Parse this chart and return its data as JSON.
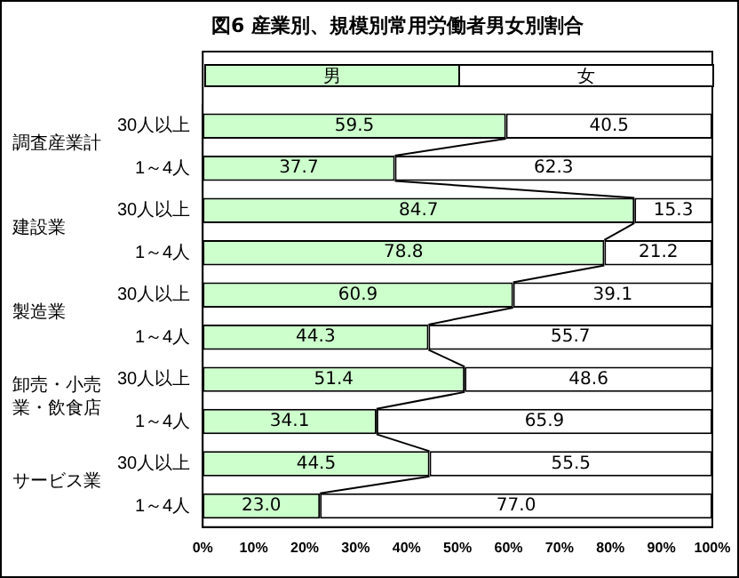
{
  "chart_data": {
    "type": "bar",
    "orientation": "horizontal",
    "stacked": true,
    "title": "図6 産業別、規模別常用労働者男女別割合",
    "categories": [
      "30人以上",
      "1～4人",
      "30人以上",
      "1～4人",
      "30人以上",
      "1～4人",
      "30人以上",
      "1～4人",
      "30人以上",
      "1～4人"
    ],
    "annotations": [
      "調査産業計",
      "建設業",
      "製造業",
      "卸売・小売業・飲食店",
      "サービス業"
    ],
    "series": [
      {
        "name": "男",
        "color": "#ccffcc",
        "values": [
          59.5,
          37.7,
          84.7,
          78.8,
          60.9,
          44.3,
          51.4,
          34.1,
          44.5,
          23.0
        ],
        "value_labels": [
          "59.5",
          "37.7",
          "84.7",
          "78.8",
          "60.9",
          "44.3",
          "51.4",
          "34.1",
          "44.5",
          "23.0"
        ]
      },
      {
        "name": "女",
        "color": "#ffffff",
        "values": [
          40.5,
          62.3,
          15.3,
          21.2,
          39.1,
          55.7,
          48.6,
          65.9,
          55.5,
          77.0
        ],
        "value_labels": [
          "40.5",
          "62.3",
          "15.3",
          "21.2",
          "39.1",
          "55.7",
          "48.6",
          "65.9",
          "55.5",
          "77.0"
        ]
      }
    ],
    "legend": "top",
    "grid": false,
    "xlim": [
      0,
      100
    ],
    "xticks": [
      {
        "value": 0,
        "label": "0%"
      },
      {
        "value": 10,
        "label": "10%"
      },
      {
        "value": 20,
        "label": "20%"
      },
      {
        "value": 30,
        "label": "30%"
      },
      {
        "value": 40,
        "label": "40%"
      },
      {
        "value": 50,
        "label": "50%"
      },
      {
        "value": 60,
        "label": "60%"
      },
      {
        "value": 70,
        "label": "70%"
      },
      {
        "value": 80,
        "label": "80%"
      },
      {
        "value": 90,
        "label": "90%"
      },
      {
        "value": 100,
        "label": "100%"
      }
    ]
  }
}
